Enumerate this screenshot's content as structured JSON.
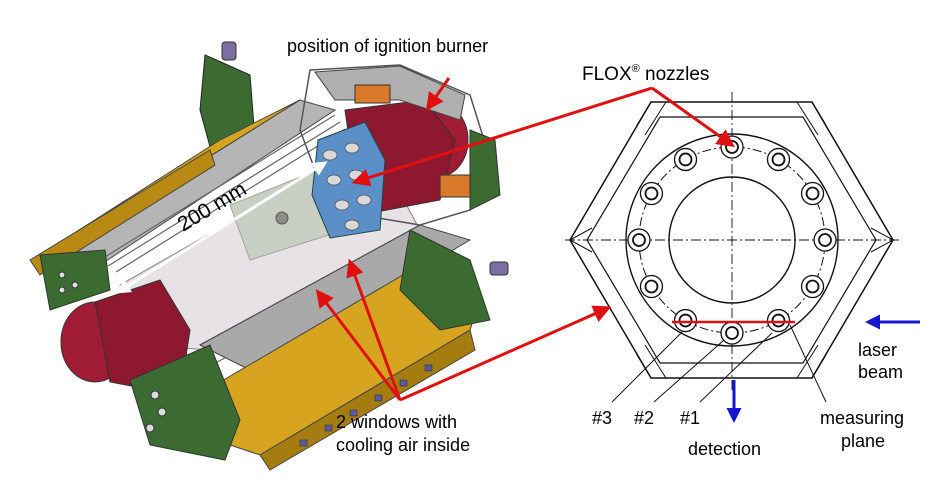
{
  "labels": {
    "ignition_burner": "position of ignition burner",
    "flox_nozzles": "FLOX",
    "flox_reg": "®",
    "flox_suffix": " nozzles",
    "dimension": "200 mm",
    "windows_line1": "2 windows with",
    "windows_line2": "cooling air inside",
    "laser_line1": "laser",
    "laser_line2": "beam",
    "measuring_line1": "measuring",
    "measuring_line2": "plane",
    "detection": "detection",
    "nozzle_3": "#3",
    "nozzle_2": "#2",
    "nozzle_1": "#1"
  },
  "colors": {
    "arrow_red": "#e01010",
    "arrow_blue": "#1515d0",
    "quartz_window": "#e6e2e6",
    "metal_gray": "#a9a9a9",
    "flange_green": "#3c6b32",
    "insulation_yellow": "#d6a41e",
    "burner_red": "#a01c34",
    "nozzle_blue": "#5a8fc8",
    "cooling_orange": "#d87a2a"
  }
}
